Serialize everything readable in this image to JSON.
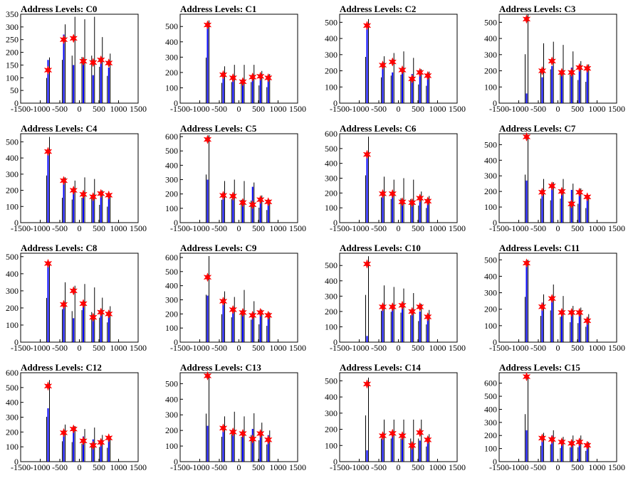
{
  "chart_data": [
    {
      "type": "bar",
      "title": "Address Levels: C0",
      "xlim": [
        -1500,
        1500
      ],
      "ylim": [
        0,
        350
      ],
      "yticks": [
        0,
        50,
        100,
        150,
        200,
        250,
        300,
        350
      ],
      "xticks": [
        -1500,
        -1000,
        -500,
        0,
        500,
        1000,
        1500
      ],
      "x": [
        -800,
        -400,
        -150,
        100,
        350,
        550,
        750
      ],
      "black": [
        180,
        310,
        340,
        330,
        340,
        260,
        195
      ],
      "blue": [
        170,
        270,
        150,
        170,
        110,
        160,
        140
      ],
      "markers": [
        130,
        250,
        255,
        165,
        160,
        170,
        158
      ]
    },
    {
      "type": "bar",
      "title": "Address Levels: C1",
      "xlim": [
        -1500,
        1500
      ],
      "ylim": [
        0,
        580
      ],
      "yticks": [
        0,
        100,
        200,
        300,
        400,
        500
      ],
      "xticks": [
        -1500,
        -1000,
        -500,
        0,
        500,
        1000,
        1500
      ],
      "x": [
        -800,
        -400,
        -150,
        100,
        350,
        550,
        750
      ],
      "black": [
        540,
        240,
        250,
        250,
        250,
        210,
        190
      ],
      "blue": [
        510,
        200,
        160,
        150,
        170,
        170,
        150
      ],
      "markers": [
        510,
        185,
        165,
        140,
        170,
        175,
        165
      ]
    },
    {
      "type": "bar",
      "title": "Address Levels: C2",
      "xlim": [
        -1500,
        1500
      ],
      "ylim": [
        0,
        550
      ],
      "yticks": [
        0,
        100,
        200,
        300,
        400,
        500
      ],
      "xticks": [
        -1500,
        -1000,
        -500,
        0,
        500,
        1000,
        1500
      ],
      "x": [
        -800,
        -400,
        -150,
        100,
        350,
        550,
        750
      ],
      "black": [
        520,
        290,
        310,
        320,
        280,
        210,
        195
      ],
      "blue": [
        480,
        250,
        190,
        200,
        180,
        180,
        170
      ],
      "markers": [
        480,
        235,
        255,
        205,
        150,
        190,
        170
      ]
    },
    {
      "type": "bar",
      "title": "Address Levels: C3",
      "xlim": [
        -1500,
        1500
      ],
      "ylim": [
        0,
        550
      ],
      "yticks": [
        0,
        100,
        200,
        300,
        400,
        500
      ],
      "xticks": [
        -1500,
        -1000,
        -500,
        0,
        500,
        1000,
        1500
      ],
      "x": [
        -800,
        -400,
        -150,
        100,
        350,
        550,
        750
      ],
      "black": [
        550,
        370,
        380,
        360,
        320,
        260,
        240
      ],
      "blue": [
        60,
        160,
        230,
        190,
        220,
        220,
        200
      ],
      "markers": [
        520,
        200,
        260,
        190,
        190,
        220,
        215
      ]
    },
    {
      "type": "bar",
      "title": "Address Levels: C4",
      "xlim": [
        -1500,
        1500
      ],
      "ylim": [
        0,
        550
      ],
      "yticks": [
        0,
        100,
        200,
        300,
        400,
        500
      ],
      "xticks": [
        -1500,
        -1000,
        -500,
        0,
        500,
        1000,
        1500
      ],
      "x": [
        -800,
        -400,
        -150,
        100,
        350,
        550,
        750
      ],
      "black": [
        530,
        280,
        260,
        280,
        270,
        200,
        180
      ],
      "blue": [
        440,
        270,
        200,
        180,
        160,
        180,
        160
      ],
      "markers": [
        440,
        260,
        200,
        175,
        160,
        180,
        170
      ]
    },
    {
      "type": "bar",
      "title": "Address Levels: C5",
      "xlim": [
        -1500,
        1500
      ],
      "ylim": [
        0,
        620
      ],
      "yticks": [
        0,
        100,
        200,
        300,
        400,
        500,
        600
      ],
      "xticks": [
        -1500,
        -1000,
        -500,
        0,
        500,
        1000,
        1500
      ],
      "x": [
        -800,
        -400,
        -150,
        100,
        350,
        550,
        750
      ],
      "black": [
        610,
        290,
        300,
        290,
        280,
        190,
        160
      ],
      "blue": [
        300,
        200,
        200,
        140,
        250,
        170,
        130
      ],
      "markers": [
        580,
        190,
        185,
        140,
        125,
        160,
        145
      ]
    },
    {
      "type": "bar",
      "title": "Address Levels: C6",
      "xlim": [
        -1500,
        1500
      ],
      "ylim": [
        0,
        600
      ],
      "yticks": [
        0,
        100,
        200,
        300,
        400,
        500,
        600
      ],
      "xticks": [
        -1500,
        -1000,
        -500,
        0,
        500,
        1000,
        1500
      ],
      "x": [
        -800,
        -400,
        -150,
        100,
        350,
        550,
        750
      ],
      "black": [
        580,
        310,
        290,
        300,
        290,
        210,
        180
      ],
      "blue": [
        460,
        200,
        190,
        150,
        150,
        170,
        150
      ],
      "markers": [
        460,
        195,
        195,
        140,
        135,
        165,
        145
      ]
    },
    {
      "type": "bar",
      "title": "Address Levels: C7",
      "xlim": [
        -1500,
        1500
      ],
      "ylim": [
        0,
        570
      ],
      "yticks": [
        0,
        100,
        200,
        300,
        400,
        500
      ],
      "xticks": [
        -1500,
        -1000,
        -500,
        0,
        500,
        1000,
        1500
      ],
      "x": [
        -800,
        -400,
        -150,
        100,
        350,
        550,
        750
      ],
      "black": [
        560,
        280,
        260,
        280,
        250,
        220,
        170
      ],
      "blue": [
        270,
        200,
        230,
        190,
        210,
        200,
        160
      ],
      "markers": [
        550,
        195,
        235,
        200,
        120,
        195,
        165
      ]
    },
    {
      "type": "bar",
      "title": "Address Levels: C8",
      "xlim": [
        -1500,
        1500
      ],
      "ylim": [
        0,
        520
      ],
      "yticks": [
        0,
        100,
        200,
        300,
        400,
        500
      ],
      "xticks": [
        -1500,
        -1000,
        -500,
        0,
        500,
        1000,
        1500
      ],
      "x": [
        -800,
        -400,
        -150,
        100,
        350,
        550,
        750
      ],
      "black": [
        470,
        350,
        330,
        340,
        320,
        260,
        210
      ],
      "blue": [
        470,
        230,
        140,
        230,
        140,
        170,
        150
      ],
      "markers": [
        460,
        220,
        300,
        225,
        145,
        175,
        165
      ]
    },
    {
      "type": "bar",
      "title": "Address Levels: C9",
      "xlim": [
        -1500,
        1500
      ],
      "ylim": [
        0,
        630
      ],
      "yticks": [
        0,
        100,
        200,
        300,
        400,
        500,
        600
      ],
      "xticks": [
        -1500,
        -1000,
        -500,
        0,
        500,
        1000,
        1500
      ],
      "x": [
        -800,
        -400,
        -150,
        100,
        350,
        550,
        750
      ],
      "black": [
        610,
        360,
        320,
        370,
        290,
        230,
        210
      ],
      "blue": [
        330,
        300,
        210,
        200,
        200,
        200,
        180
      ],
      "markers": [
        460,
        290,
        230,
        210,
        190,
        210,
        190
      ]
    },
    {
      "type": "bar",
      "title": "Address Levels: C10",
      "xlim": [
        -1500,
        1500
      ],
      "ylim": [
        0,
        580
      ],
      "yticks": [
        0,
        100,
        200,
        300,
        400,
        500
      ],
      "xticks": [
        -1500,
        -1000,
        -500,
        0,
        500,
        1000,
        1500
      ],
      "x": [
        -800,
        -400,
        -150,
        100,
        350,
        550,
        750
      ],
      "black": [
        560,
        370,
        360,
        350,
        320,
        250,
        210
      ],
      "blue": [
        40,
        230,
        230,
        240,
        200,
        200,
        160
      ],
      "markers": [
        510,
        230,
        230,
        240,
        200,
        230,
        165
      ]
    },
    {
      "type": "bar",
      "title": "Address Levels: C11",
      "xlim": [
        -1500,
        1500
      ],
      "ylim": [
        0,
        540
      ],
      "yticks": [
        0,
        100,
        200,
        300,
        400,
        500
      ],
      "xticks": [
        -1500,
        -1000,
        -500,
        0,
        500,
        1000,
        1500
      ],
      "x": [
        -800,
        -400,
        -150,
        100,
        350,
        550,
        750
      ],
      "black": [
        500,
        290,
        350,
        280,
        220,
        210,
        170
      ],
      "blue": [
        490,
        240,
        260,
        180,
        190,
        180,
        150
      ],
      "markers": [
        480,
        215,
        265,
        180,
        180,
        180,
        130
      ]
    },
    {
      "type": "bar",
      "title": "Address Levels: C12",
      "xlim": [
        -1500,
        1500
      ],
      "ylim": [
        0,
        600
      ],
      "yticks": [
        0,
        100,
        200,
        300,
        400,
        500,
        600
      ],
      "xticks": [
        -1500,
        -1000,
        -500,
        0,
        500,
        1000,
        1500
      ],
      "x": [
        -800,
        -400,
        -150,
        100,
        350,
        550,
        750
      ],
      "black": [
        550,
        250,
        240,
        220,
        230,
        180,
        170
      ],
      "blue": [
        360,
        200,
        230,
        170,
        150,
        140,
        160
      ],
      "markers": [
        510,
        195,
        220,
        140,
        110,
        130,
        160
      ]
    },
    {
      "type": "bar",
      "title": "Address Levels: C13",
      "xlim": [
        -1500,
        1500
      ],
      "ylim": [
        0,
        570
      ],
      "yticks": [
        0,
        100,
        200,
        300,
        400,
        500
      ],
      "xticks": [
        -1500,
        -1000,
        -500,
        0,
        500,
        1000,
        1500
      ],
      "x": [
        -800,
        -400,
        -150,
        100,
        350,
        550,
        750
      ],
      "black": [
        560,
        290,
        320,
        290,
        310,
        250,
        200
      ],
      "blue": [
        230,
        200,
        200,
        180,
        210,
        180,
        170
      ],
      "markers": [
        550,
        215,
        190,
        180,
        145,
        180,
        140
      ]
    },
    {
      "type": "bar",
      "title": "Address Levels: C14",
      "xlim": [
        -1500,
        1500
      ],
      "ylim": [
        0,
        550
      ],
      "yticks": [
        0,
        100,
        200,
        300,
        400,
        500
      ],
      "xticks": [
        -1500,
        -1000,
        -500,
        0,
        500,
        1000,
        1500
      ],
      "x": [
        -800,
        -400,
        -150,
        100,
        350,
        550,
        750
      ],
      "black": [
        520,
        260,
        260,
        260,
        260,
        260,
        170
      ],
      "blue": [
        70,
        150,
        170,
        160,
        100,
        130,
        150
      ],
      "markers": [
        480,
        160,
        175,
        160,
        100,
        180,
        135
      ]
    },
    {
      "type": "bar",
      "title": "Address Levels: C15",
      "xlim": [
        -1500,
        1500
      ],
      "ylim": [
        0,
        680
      ],
      "yticks": [
        0,
        100,
        200,
        300,
        400,
        500,
        600
      ],
      "xticks": [
        -1500,
        -1000,
        -500,
        0,
        500,
        1000,
        1500
      ],
      "x": [
        -800,
        -400,
        -150,
        100,
        350,
        550,
        750
      ],
      "black": [
        660,
        220,
        240,
        190,
        200,
        200,
        150
      ],
      "blue": [
        240,
        200,
        200,
        160,
        150,
        170,
        140
      ],
      "markers": [
        650,
        180,
        170,
        150,
        140,
        150,
        125
      ]
    }
  ]
}
